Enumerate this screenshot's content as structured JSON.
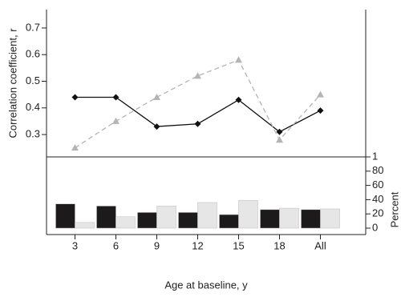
{
  "chart_data": [
    {
      "type": "line",
      "y_label": "Correlation coefficient, r",
      "series": [
        {
          "color": "#111111",
          "marker": "diamond",
          "dashed": false,
          "values": [
            0.44,
            0.44,
            0.33,
            0.34,
            0.43,
            0.31,
            0.39
          ]
        },
        {
          "color": "#b4b4b4",
          "marker": "triangle",
          "dashed": true,
          "values": [
            0.25,
            0.35,
            0.44,
            0.52,
            0.58,
            0.28,
            0.45
          ]
        }
      ],
      "ylim": [
        0.216,
        0.769
      ],
      "yticks": [
        0.3,
        0.4,
        0.5,
        0.6,
        0.7
      ]
    },
    {
      "type": "bar",
      "x_label": "Age at baseline, y",
      "y_label": "Percent",
      "categories": [
        "3",
        "6",
        "9",
        "12",
        "15",
        "18",
        "All"
      ],
      "series": [
        {
          "color": "#1c1a1a",
          "values": [
            34,
            31,
            22,
            22,
            19,
            26,
            26
          ]
        },
        {
          "color": "#e6e6e6",
          "values": [
            8,
            16,
            31,
            36,
            39,
            28,
            27
          ]
        }
      ],
      "ylim": [
        0,
        100
      ],
      "yticks": [
        0,
        20,
        40,
        60,
        80,
        {
          "value": 100,
          "label": "1"
        }
      ]
    }
  ]
}
